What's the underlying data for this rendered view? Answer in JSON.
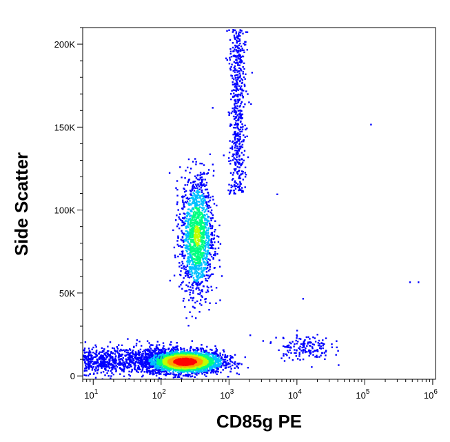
{
  "chart_data": {
    "type": "scatter",
    "subtype": "flow-cytometry-density-dot-plot",
    "xlabel": "CD85g PE",
    "ylabel": "Side Scatter",
    "x_scale": "log",
    "xlim": [
      7,
      1100000
    ],
    "ylim": [
      -2000,
      210000
    ],
    "x_ticks": [
      {
        "value": 10,
        "base": "10",
        "exp": "1"
      },
      {
        "value": 100,
        "base": "10",
        "exp": "2"
      },
      {
        "value": 1000,
        "base": "10",
        "exp": "3"
      },
      {
        "value": 10000,
        "base": "10",
        "exp": "4"
      },
      {
        "value": 100000,
        "base": "10",
        "exp": "5"
      },
      {
        "value": 1000000,
        "base": "10",
        "exp": "6"
      }
    ],
    "y_ticks": [
      {
        "value": 0,
        "label": "0"
      },
      {
        "value": 50000,
        "label": "50K"
      },
      {
        "value": 100000,
        "label": "100K"
      },
      {
        "value": 150000,
        "label": "150K"
      },
      {
        "value": 200000,
        "label": "200K"
      }
    ],
    "density_colormap": [
      "#0000ff",
      "#00c0ff",
      "#00ff80",
      "#c0ff00",
      "#ffa000",
      "#ff0000"
    ],
    "populations": [
      {
        "name": "SSC-low cluster (lymphocytes)",
        "x_center": 220,
        "x_spread_decades": 0.28,
        "y_center": 9000,
        "y_spread": 3500,
        "relative_density": 1.0
      },
      {
        "name": "SSC-low tail to left edge",
        "x_range": [
          7,
          160
        ],
        "y_center": 10000,
        "y_spread": 4000,
        "relative_density": 0.35
      },
      {
        "name": "SSC-mid cluster (monocytes)",
        "x_center": 330,
        "x_spread_decades": 0.12,
        "y_center": 85000,
        "y_spread": 18000,
        "relative_density": 0.55
      },
      {
        "name": "upper stream",
        "x_center": 1300,
        "x_spread_decades": 0.06,
        "y_range": [
          110000,
          210000
        ],
        "relative_density": 0.2
      },
      {
        "name": "CD85g-high sparse events",
        "x_center": 12000,
        "x_spread_decades": 0.2,
        "y_center": 18000,
        "y_spread": 4000,
        "relative_density": 0.06
      },
      {
        "name": "outlier events",
        "points": [
          [
            120000,
            152000
          ],
          [
            450000,
            57000
          ],
          [
            600000,
            57000
          ],
          [
            40000,
            7000
          ],
          [
            12000,
            47000
          ],
          [
            5000,
            110000
          ],
          [
            2000,
            25000
          ]
        ]
      }
    ]
  }
}
